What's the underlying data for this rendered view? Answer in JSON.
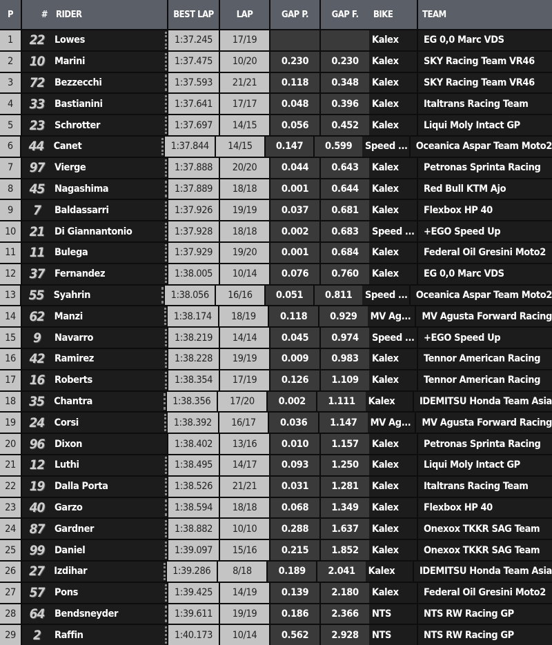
{
  "headers": {
    "p": "P",
    "num": "#",
    "rider": "RIDER",
    "best": "BEST LAP",
    "lap": "LAP",
    "gapp": "GAP P.",
    "gapf": "GAP F.",
    "bike": "BIKE",
    "team": "TEAM"
  },
  "rows": [
    {
      "p": "1",
      "num": "22",
      "rider": "Lowes",
      "best": "1:37.245",
      "lap": "17/19",
      "gapp": "",
      "gapf": "",
      "bike": "Kalex",
      "team": "EG 0,0 Marc VDS",
      "mark": true
    },
    {
      "p": "2",
      "num": "10",
      "rider": "Marini",
      "best": "1:37.475",
      "lap": "10/20",
      "gapp": "0.230",
      "gapf": "0.230",
      "bike": "Kalex",
      "team": "SKY Racing Team VR46",
      "mark": true
    },
    {
      "p": "3",
      "num": "72",
      "rider": "Bezzecchi",
      "best": "1:37.593",
      "lap": "21/21",
      "gapp": "0.118",
      "gapf": "0.348",
      "bike": "Kalex",
      "team": "SKY Racing Team VR46",
      "mark": true
    },
    {
      "p": "4",
      "num": "33",
      "rider": "Bastianini",
      "best": "1:37.641",
      "lap": "17/17",
      "gapp": "0.048",
      "gapf": "0.396",
      "bike": "Kalex",
      "team": "Italtrans Racing Team",
      "mark": true
    },
    {
      "p": "5",
      "num": "23",
      "rider": "Schrotter",
      "best": "1:37.697",
      "lap": "14/15",
      "gapp": "0.056",
      "gapf": "0.452",
      "bike": "Kalex",
      "team": "Liqui Moly Intact GP",
      "mark": true
    },
    {
      "p": "6",
      "num": "44",
      "rider": "Canet",
      "best": "1:37.844",
      "lap": "14/15",
      "gapp": "0.147",
      "gapf": "0.599",
      "bike": "Speed ...",
      "team": "Oceanica Aspar Team Moto2",
      "mark": true
    },
    {
      "p": "7",
      "num": "97",
      "rider": "Vierge",
      "best": "1:37.888",
      "lap": "20/20",
      "gapp": "0.044",
      "gapf": "0.643",
      "bike": "Kalex",
      "team": "Petronas Sprinta Racing",
      "mark": true
    },
    {
      "p": "8",
      "num": "45",
      "rider": "Nagashima",
      "best": "1:37.889",
      "lap": "18/18",
      "gapp": "0.001",
      "gapf": "0.644",
      "bike": "Kalex",
      "team": "Red Bull KTM Ajo",
      "mark": true
    },
    {
      "p": "9",
      "num": "7",
      "rider": "Baldassarri",
      "best": "1:37.926",
      "lap": "19/19",
      "gapp": "0.037",
      "gapf": "0.681",
      "bike": "Kalex",
      "team": "Flexbox HP 40",
      "mark": true
    },
    {
      "p": "10",
      "num": "21",
      "rider": "Di Giannantonio",
      "best": "1:37.928",
      "lap": "18/18",
      "gapp": "0.002",
      "gapf": "0.683",
      "bike": "Speed ...",
      "team": "+EGO Speed Up",
      "mark": true
    },
    {
      "p": "11",
      "num": "11",
      "rider": "Bulega",
      "best": "1:37.929",
      "lap": "19/20",
      "gapp": "0.001",
      "gapf": "0.684",
      "bike": "Kalex",
      "team": "Federal Oil Gresini Moto2",
      "mark": true
    },
    {
      "p": "12",
      "num": "37",
      "rider": "Fernandez",
      "best": "1:38.005",
      "lap": "10/14",
      "gapp": "0.076",
      "gapf": "0.760",
      "bike": "Kalex",
      "team": "EG 0,0 Marc VDS",
      "mark": true
    },
    {
      "p": "13",
      "num": "55",
      "rider": "Syahrin",
      "best": "1:38.056",
      "lap": "16/16",
      "gapp": "0.051",
      "gapf": "0.811",
      "bike": "Speed ...",
      "team": "Oceanica Aspar Team Moto2",
      "mark": true
    },
    {
      "p": "14",
      "num": "62",
      "rider": "Manzi",
      "best": "1:38.174",
      "lap": "18/19",
      "gapp": "0.118",
      "gapf": "0.929",
      "bike": "MV Ag...",
      "team": "MV Agusta Forward Racing",
      "mark": true
    },
    {
      "p": "15",
      "num": "9",
      "rider": "Navarro",
      "best": "1:38.219",
      "lap": "14/14",
      "gapp": "0.045",
      "gapf": "0.974",
      "bike": "Speed ...",
      "team": "+EGO Speed Up",
      "mark": true
    },
    {
      "p": "16",
      "num": "42",
      "rider": "Ramirez",
      "best": "1:38.228",
      "lap": "19/19",
      "gapp": "0.009",
      "gapf": "0.983",
      "bike": "Kalex",
      "team": "Tennor American Racing",
      "mark": true
    },
    {
      "p": "17",
      "num": "16",
      "rider": "Roberts",
      "best": "1:38.354",
      "lap": "17/19",
      "gapp": "0.126",
      "gapf": "1.109",
      "bike": "Kalex",
      "team": "Tennor American Racing",
      "mark": true
    },
    {
      "p": "18",
      "num": "35",
      "rider": "Chantra",
      "best": "1:38.356",
      "lap": "17/20",
      "gapp": "0.002",
      "gapf": "1.111",
      "bike": "Kalex",
      "team": "IDEMITSU Honda Team Asia",
      "mark": true
    },
    {
      "p": "19",
      "num": "24",
      "rider": "Corsi",
      "best": "1:38.392",
      "lap": "16/17",
      "gapp": "0.036",
      "gapf": "1.147",
      "bike": "MV Ag...",
      "team": "MV Agusta Forward Racing",
      "mark": true
    },
    {
      "p": "20",
      "num": "96",
      "rider": "Dixon",
      "best": "1:38.402",
      "lap": "13/16",
      "gapp": "0.010",
      "gapf": "1.157",
      "bike": "Kalex",
      "team": "Petronas Sprinta Racing",
      "mark": false
    },
    {
      "p": "21",
      "num": "12",
      "rider": "Luthi",
      "best": "1:38.495",
      "lap": "14/17",
      "gapp": "0.093",
      "gapf": "1.250",
      "bike": "Kalex",
      "team": "Liqui Moly Intact GP",
      "mark": true
    },
    {
      "p": "22",
      "num": "19",
      "rider": "Dalla Porta",
      "best": "1:38.526",
      "lap": "21/21",
      "gapp": "0.031",
      "gapf": "1.281",
      "bike": "Kalex",
      "team": "Italtrans Racing Team",
      "mark": true
    },
    {
      "p": "23",
      "num": "40",
      "rider": "Garzo",
      "best": "1:38.594",
      "lap": "18/18",
      "gapp": "0.068",
      "gapf": "1.349",
      "bike": "Kalex",
      "team": "Flexbox HP 40",
      "mark": true
    },
    {
      "p": "24",
      "num": "87",
      "rider": "Gardner",
      "best": "1:38.882",
      "lap": "10/10",
      "gapp": "0.288",
      "gapf": "1.637",
      "bike": "Kalex",
      "team": "Onexox TKKR SAG Team",
      "mark": true
    },
    {
      "p": "25",
      "num": "99",
      "rider": "Daniel",
      "best": "1:39.097",
      "lap": "15/16",
      "gapp": "0.215",
      "gapf": "1.852",
      "bike": "Kalex",
      "team": "Onexox TKKR SAG Team",
      "mark": true
    },
    {
      "p": "26",
      "num": "27",
      "rider": "Izdihar",
      "best": "1:39.286",
      "lap": "8/18",
      "gapp": "0.189",
      "gapf": "2.041",
      "bike": "Kalex",
      "team": "IDEMITSU Honda Team Asia",
      "mark": true
    },
    {
      "p": "27",
      "num": "57",
      "rider": "Pons",
      "best": "1:39.425",
      "lap": "14/19",
      "gapp": "0.139",
      "gapf": "2.180",
      "bike": "Kalex",
      "team": "Federal Oil Gresini Moto2",
      "mark": true
    },
    {
      "p": "28",
      "num": "64",
      "rider": "Bendsneyder",
      "best": "1:39.611",
      "lap": "19/19",
      "gapp": "0.186",
      "gapf": "2.366",
      "bike": "NTS",
      "team": "NTS RW Racing GP",
      "mark": true
    },
    {
      "p": "29",
      "num": "2",
      "rider": "Raffin",
      "best": "1:40.173",
      "lap": "10/14",
      "gapp": "0.562",
      "gapf": "2.928",
      "bike": "NTS",
      "team": "NTS RW Racing GP",
      "mark": true
    }
  ]
}
